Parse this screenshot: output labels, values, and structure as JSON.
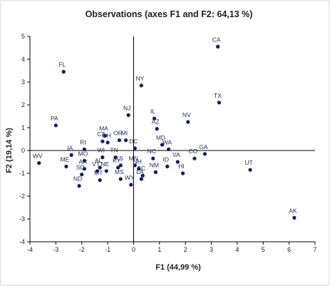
{
  "chart_data": {
    "type": "scatter",
    "title": "Observations (axes F1 and F2: 64,13 %)",
    "xlabel": "F1 (44,99 %)",
    "ylabel": "F2 (19,14 %)",
    "xlim": [
      -4,
      7
    ],
    "ylim": [
      -4,
      5
    ],
    "xticks": [
      -4,
      -3,
      -2,
      -1,
      0,
      1,
      2,
      3,
      4,
      5,
      6,
      7
    ],
    "yticks": [
      -4,
      -3,
      -2,
      -1,
      0,
      1,
      2,
      3,
      4,
      5
    ],
    "grid": false,
    "legend": "none",
    "point_color": "#0e1e5b",
    "points": [
      {
        "label": "CA",
        "x": 3.25,
        "y": 4.55
      },
      {
        "label": "FL",
        "x": -2.7,
        "y": 3.45
      },
      {
        "label": "NY",
        "x": 0.3,
        "y": 2.85
      },
      {
        "label": "TX",
        "x": 3.3,
        "y": 2.1
      },
      {
        "label": "NJ",
        "x": -0.2,
        "y": 1.55
      },
      {
        "label": "IL",
        "x": 0.8,
        "y": 1.4
      },
      {
        "label": "NV",
        "x": 2.1,
        "y": 1.25
      },
      {
        "label": "AZ",
        "x": 0.9,
        "y": 0.95
      },
      {
        "label": "PA",
        "x": -3.0,
        "y": 1.1
      },
      {
        "label": "MA",
        "x": -1.1,
        "y": 0.65
      },
      {
        "label": "CT",
        "x": -1.2,
        "y": 0.4
      },
      {
        "label": "OR",
        "x": -0.55,
        "y": 0.45
      },
      {
        "label": "MI",
        "x": -0.3,
        "y": 0.45
      },
      {
        "label": "OH",
        "x": -1.0,
        "y": 0.35
      },
      {
        "label": "RI",
        "x": -1.9,
        "y": 0.05
      },
      {
        "label": "DC",
        "x": 0.05,
        "y": 0.1
      },
      {
        "label": "MD",
        "x": 1.1,
        "y": 0.25
      },
      {
        "label": "WA",
        "x": 1.35,
        "y": 0.05
      },
      {
        "label": "WI",
        "x": -1.2,
        "y": -0.3
      },
      {
        "label": "TN",
        "x": -0.7,
        "y": -0.3
      },
      {
        "label": "IA",
        "x": -2.4,
        "y": -0.2
      },
      {
        "label": "MO",
        "x": -1.9,
        "y": -0.45
      },
      {
        "label": "ME",
        "x": -2.6,
        "y": -0.7
      },
      {
        "label": "AR",
        "x": -1.9,
        "y": -0.8
      },
      {
        "label": "WV",
        "x": -3.65,
        "y": -0.55
      },
      {
        "label": "SD",
        "x": -2.0,
        "y": -1.05
      },
      {
        "label": "VT",
        "x": -1.4,
        "y": -0.9
      },
      {
        "label": "AL",
        "x": -1.3,
        "y": -0.75
      },
      {
        "label": "NE",
        "x": -1.05,
        "y": -0.9
      },
      {
        "label": "KY",
        "x": -0.6,
        "y": -0.75
      },
      {
        "label": "KS",
        "x": -0.5,
        "y": -0.65
      },
      {
        "label": "SC",
        "x": 0.35,
        "y": -1.1
      },
      {
        "label": "NH",
        "x": 0.2,
        "y": -0.8
      },
      {
        "label": "MN",
        "x": 0.05,
        "y": -0.65
      },
      {
        "label": "NC",
        "x": 0.75,
        "y": -0.35
      },
      {
        "label": "ND",
        "x": -2.1,
        "y": -1.55
      },
      {
        "label": "MT",
        "x": -1.3,
        "y": -1.3
      },
      {
        "label": "MS",
        "x": -0.5,
        "y": -1.25
      },
      {
        "label": "LA",
        "x": 0.3,
        "y": -1.25
      },
      {
        "label": "WY",
        "x": -0.1,
        "y": -1.5
      },
      {
        "label": "NM",
        "x": 0.85,
        "y": -0.95
      },
      {
        "label": "ID",
        "x": 1.3,
        "y": -0.7
      },
      {
        "label": "VA",
        "x": 1.7,
        "y": -0.5
      },
      {
        "label": "HI",
        "x": 1.9,
        "y": -1.0
      },
      {
        "label": "CO",
        "x": 2.35,
        "y": -0.35
      },
      {
        "label": "GA",
        "x": 2.75,
        "y": -0.15
      },
      {
        "label": "UT",
        "x": 4.5,
        "y": -0.85
      },
      {
        "label": "AK",
        "x": 6.2,
        "y": -2.95
      }
    ]
  }
}
